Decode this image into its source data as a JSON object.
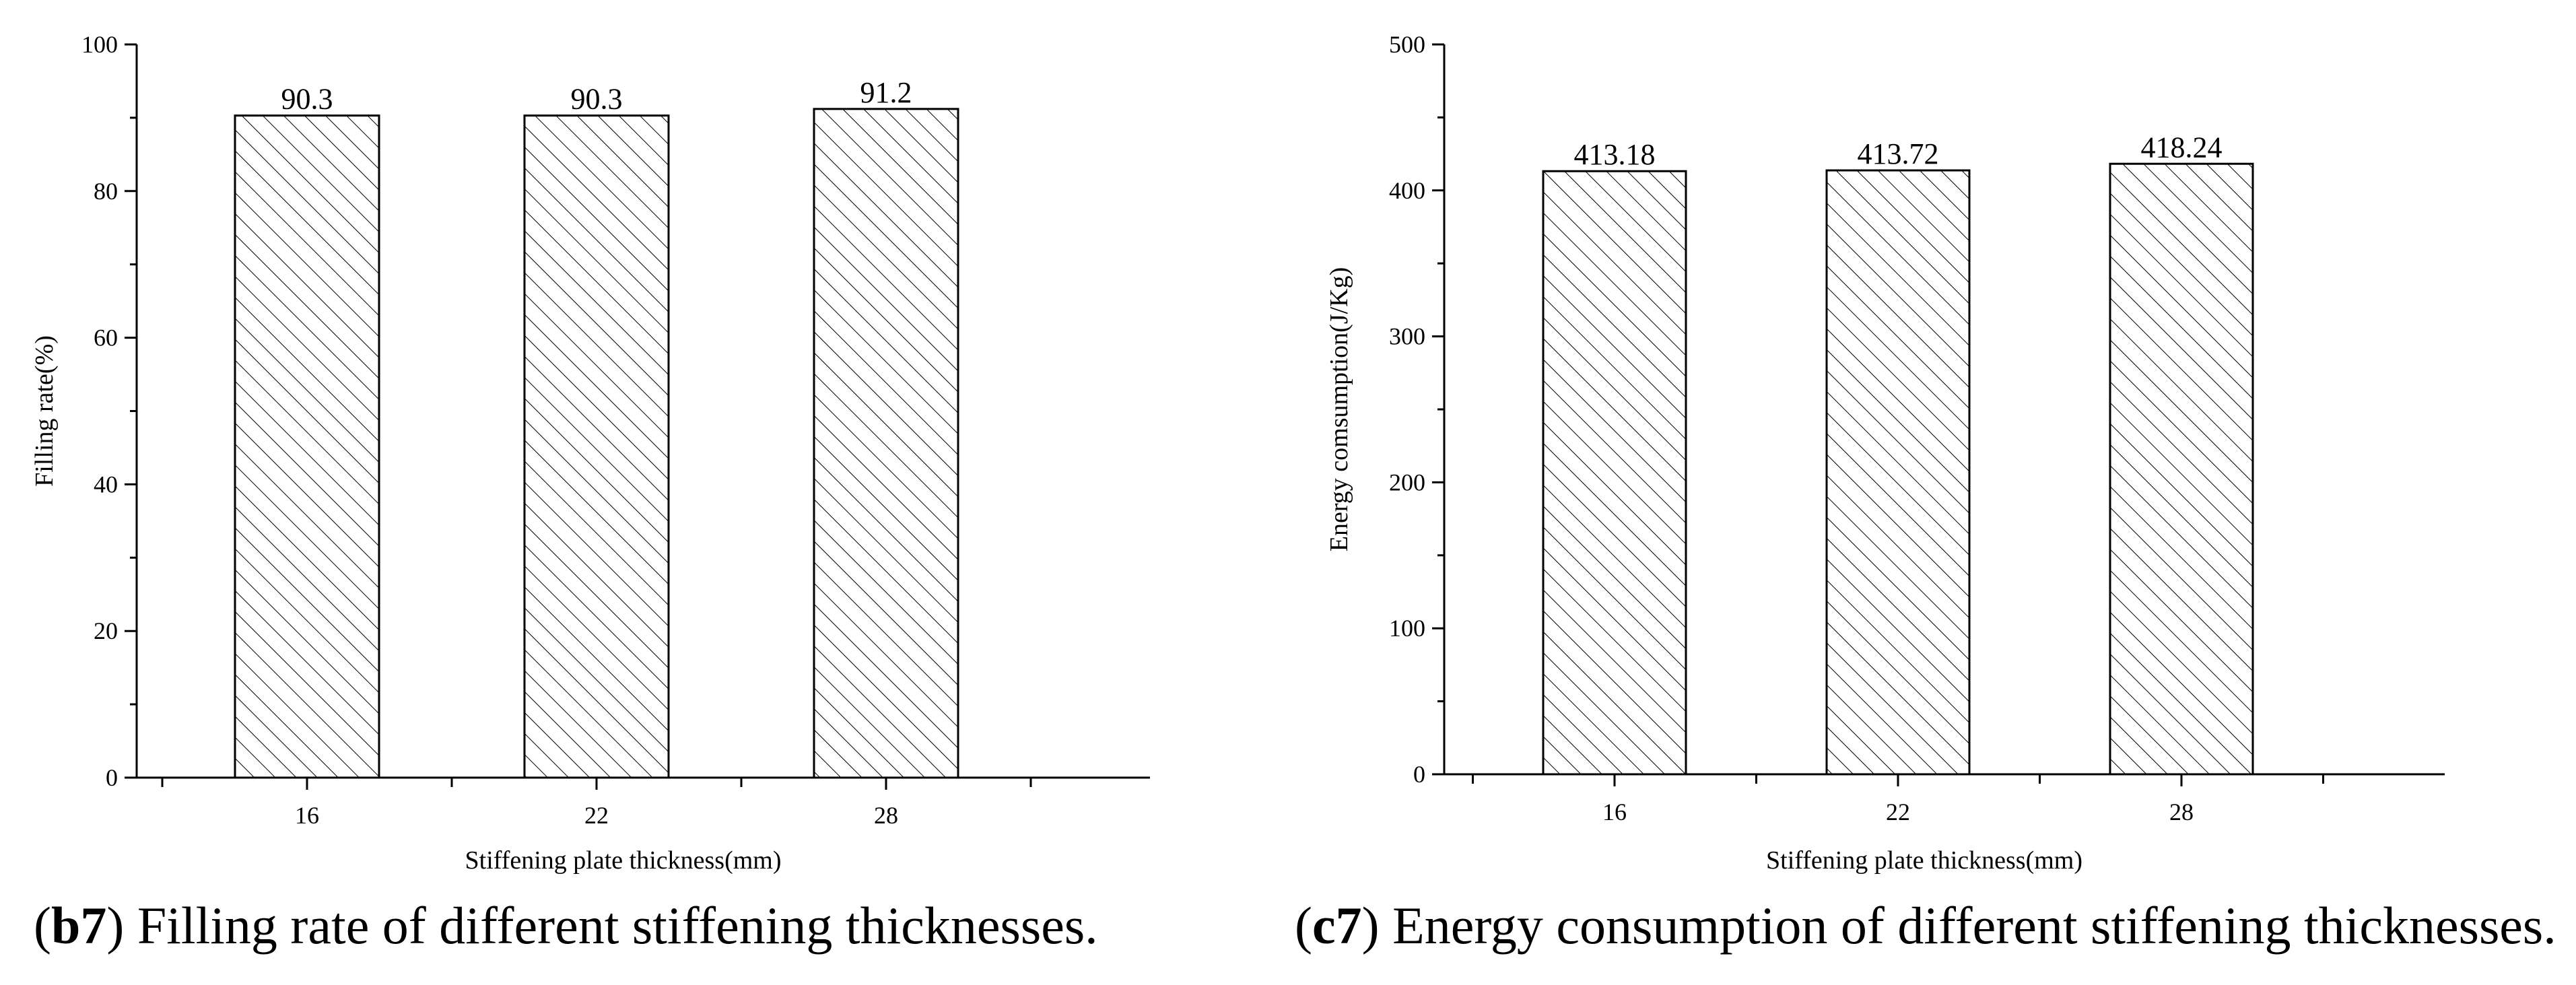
{
  "chart_data": [
    {
      "type": "bar",
      "categories": [
        "16",
        "22",
        "28"
      ],
      "values": [
        90.3,
        90.3,
        91.2
      ],
      "data_labels": [
        "90.3",
        "90.3",
        "91.2"
      ],
      "xlabel": "Stiffening plate thickness(mm)",
      "ylabel": "Filling rate(%)",
      "ylim": [
        0,
        100
      ],
      "yticks": [
        "0",
        "20",
        "40",
        "60",
        "80",
        "100"
      ],
      "bar_fill": "hatched",
      "caption_tag": "b7",
      "caption_text": " Filling rate of different stiffening thicknesses."
    },
    {
      "type": "bar",
      "categories": [
        "16",
        "22",
        "28"
      ],
      "values": [
        413.18,
        413.72,
        418.24
      ],
      "data_labels": [
        "413.18",
        "413.72",
        "418.24"
      ],
      "xlabel": "Stiffening plate thickness(mm)",
      "ylabel": "Energy comsumption(J/Kg)",
      "ylim": [
        0,
        500
      ],
      "yticks": [
        "0",
        "100",
        "200",
        "300",
        "400",
        "500"
      ],
      "bar_fill": "hatched",
      "caption_tag": "c7",
      "caption_text": " Energy consumption of different stiffening thicknesses."
    }
  ]
}
